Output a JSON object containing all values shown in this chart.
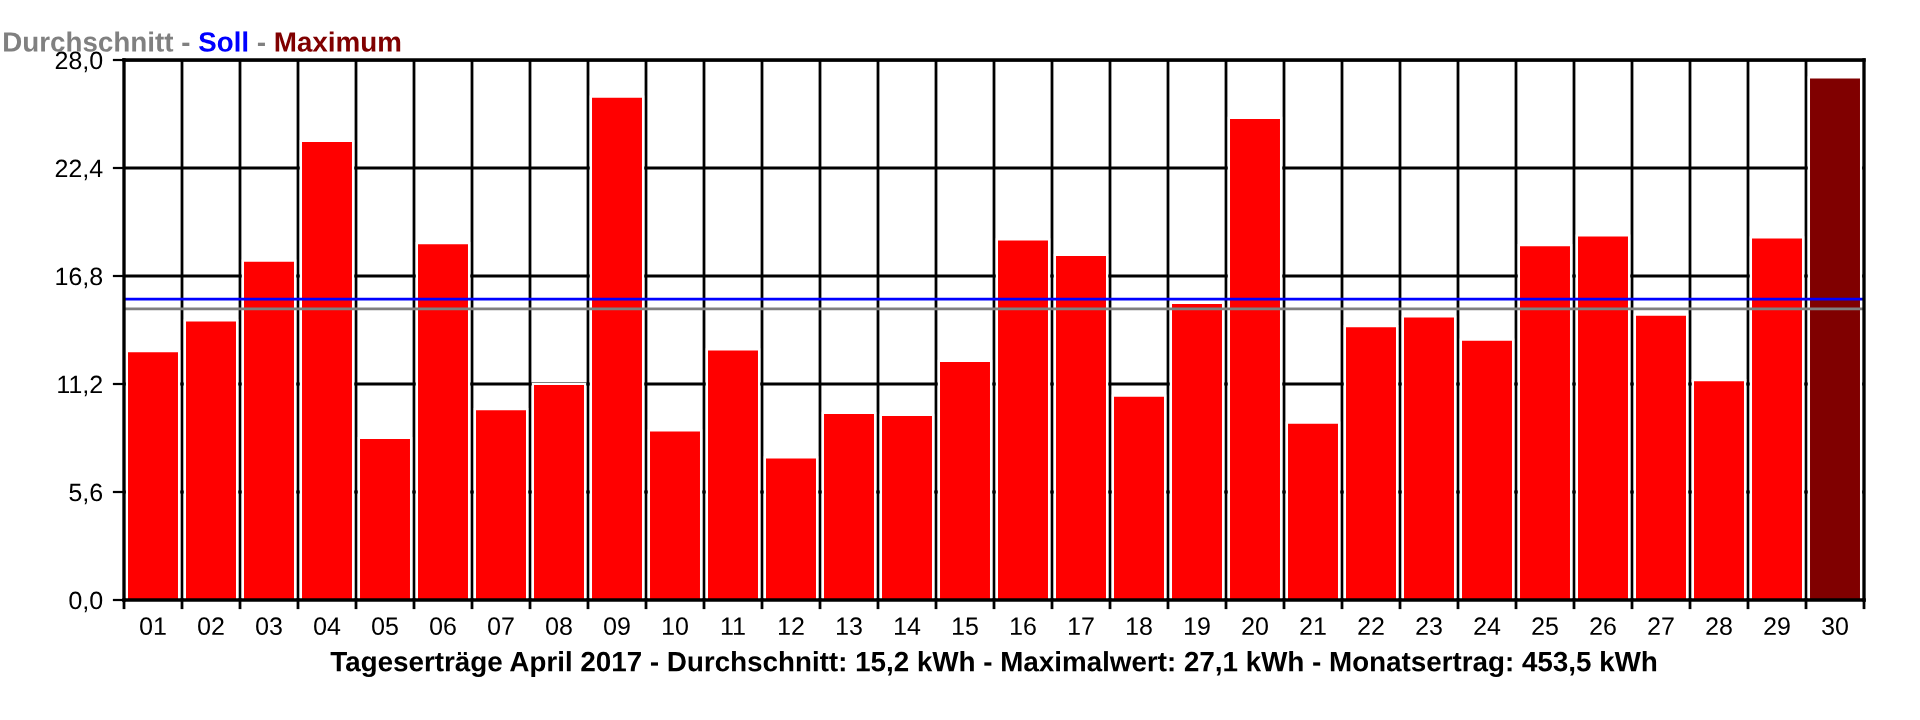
{
  "chart_data": {
    "type": "bar",
    "annotations": [
      "-",
      "-"
    ],
    "xlabel": "Tageserträge April 2017 - Durchschnitt: 15,2 kWh - Maximalwert: 27,1 kWh - Monatsertrag: 453,5 kWh",
    "categories": [
      "01",
      "02",
      "03",
      "04",
      "05",
      "06",
      "07",
      "08",
      "09",
      "10",
      "11",
      "12",
      "13",
      "14",
      "15",
      "16",
      "17",
      "18",
      "19",
      "20",
      "21",
      "22",
      "23",
      "24",
      "25",
      "26",
      "27",
      "28",
      "29",
      "30"
    ],
    "series": [
      {
        "color": "#ff0000",
        "values": [
          12.9,
          14.5,
          17.6,
          23.8,
          8.4,
          18.5,
          9.9,
          11.2,
          26.1,
          8.8,
          13.0,
          7.4,
          9.7,
          9.6,
          12.4,
          18.7,
          17.9,
          10.6,
          15.4,
          25.0,
          9.2,
          14.2,
          14.7,
          13.5,
          18.4,
          18.9,
          14.8,
          11.4,
          18.8,
          null
        ]
      },
      {
        "name": "Maximum",
        "color": "#800000",
        "values": [
          null,
          null,
          null,
          null,
          null,
          null,
          null,
          null,
          null,
          null,
          null,
          null,
          null,
          null,
          null,
          null,
          null,
          null,
          null,
          null,
          null,
          null,
          null,
          null,
          null,
          null,
          null,
          null,
          null,
          27.1
        ]
      }
    ],
    "ref_lines": [
      {
        "axis": "y",
        "value": 15.1,
        "label": "Durchschnitt",
        "color": "#808080"
      },
      {
        "axis": "y",
        "value": 15.6,
        "label": "Soll",
        "color": "#0000ff"
      }
    ],
    "ylim": [
      0,
      28
    ],
    "yticks": [
      {
        "value": 0,
        "label": "0,0"
      },
      {
        "value": 5.6,
        "label": "5,6"
      },
      {
        "value": 11.2,
        "label": "11,2"
      },
      {
        "value": 16.8,
        "label": "16,8"
      },
      {
        "value": 22.4,
        "label": "22,4"
      },
      {
        "value": 28,
        "label": "28,0"
      }
    ],
    "grid": true,
    "legend": "top left"
  }
}
